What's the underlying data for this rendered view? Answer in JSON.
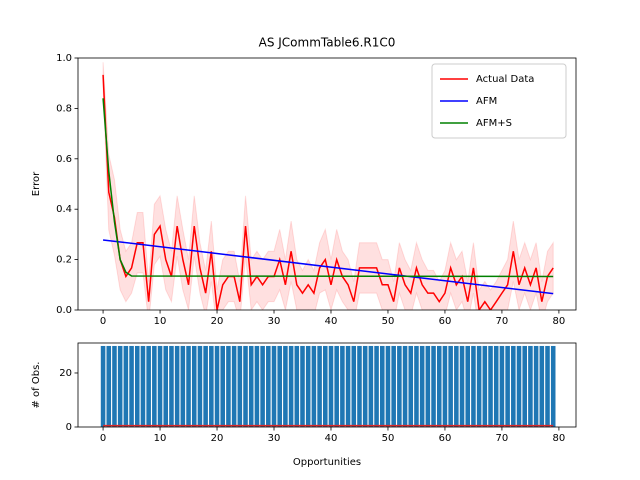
{
  "chart_data": [
    {
      "type": "line",
      "title": "AS JCommTable6.R1C0",
      "y_label": "Error",
      "xlim": [
        -4.4,
        83
      ],
      "ylim": [
        0,
        1
      ],
      "xticks": [
        0,
        10,
        20,
        30,
        40,
        50,
        60,
        70,
        80
      ],
      "yticks": [
        {
          "value": 0,
          "label": "0.0"
        },
        {
          "value": 0.2,
          "label": "0.2"
        },
        {
          "value": 0.4,
          "label": "0.4"
        },
        {
          "value": 0.6,
          "label": "0.6"
        },
        {
          "value": 0.8,
          "label": "0.8"
        },
        {
          "value": 1,
          "label": "1.0"
        }
      ],
      "legend": "upper right",
      "series": [
        {
          "name": "Actual Data",
          "color": "#ff0000",
          "band_color": "#ff0000",
          "x": [
            0,
            1,
            2,
            3,
            4,
            5,
            6,
            7,
            8,
            9,
            10,
            11,
            12,
            13,
            14,
            15,
            16,
            17,
            18,
            19,
            20,
            21,
            22,
            23,
            24,
            25,
            26,
            27,
            28,
            29,
            30,
            31,
            32,
            33,
            34,
            35,
            36,
            37,
            38,
            39,
            40,
            41,
            42,
            43,
            44,
            45,
            46,
            47,
            48,
            49,
            50,
            51,
            52,
            53,
            54,
            55,
            56,
            57,
            58,
            59,
            60,
            61,
            62,
            63,
            64,
            65,
            66,
            67,
            68,
            69,
            70,
            71,
            72,
            73,
            74,
            75,
            76,
            77,
            78,
            79
          ],
          "values": [
            0.933,
            0.467,
            0.367,
            0.2,
            0.133,
            0.167,
            0.267,
            0.267,
            0.033,
            0.3,
            0.333,
            0.2,
            0.133,
            0.333,
            0.2,
            0.1,
            0.333,
            0.167,
            0.067,
            0.233,
            0.0,
            0.1,
            0.133,
            0.133,
            0.033,
            0.333,
            0.1,
            0.133,
            0.1,
            0.133,
            0.133,
            0.2,
            0.1,
            0.233,
            0.1,
            0.067,
            0.1,
            0.067,
            0.167,
            0.2,
            0.1,
            0.2,
            0.133,
            0.1,
            0.033,
            0.167,
            0.167,
            0.167,
            0.167,
            0.1,
            0.1,
            0.033,
            0.167,
            0.1,
            0.067,
            0.167,
            0.1,
            0.067,
            0.067,
            0.033,
            0.067,
            0.167,
            0.1,
            0.133,
            0.033,
            0.167,
            0.0,
            0.033,
            0.0,
            0.033,
            0.067,
            0.1,
            0.233,
            0.1,
            0.167,
            0.1,
            0.167,
            0.033,
            0.133,
            0.167
          ],
          "errors": [
            0.05,
            0.15,
            0.15,
            0.12,
            0.1,
            0.1,
            0.12,
            0.12,
            0.08,
            0.12,
            0.12,
            0.12,
            0.1,
            0.12,
            0.12,
            0.1,
            0.12,
            0.1,
            0.09,
            0.12,
            0.08,
            0.1,
            0.1,
            0.1,
            0.08,
            0.12,
            0.1,
            0.1,
            0.1,
            0.1,
            0.1,
            0.12,
            0.1,
            0.12,
            0.1,
            0.09,
            0.1,
            0.09,
            0.1,
            0.12,
            0.1,
            0.12,
            0.1,
            0.1,
            0.08,
            0.1,
            0.1,
            0.1,
            0.1,
            0.1,
            0.1,
            0.08,
            0.1,
            0.1,
            0.09,
            0.1,
            0.1,
            0.09,
            0.09,
            0.08,
            0.09,
            0.1,
            0.1,
            0.1,
            0.08,
            0.1,
            0.08,
            0.08,
            0.08,
            0.08,
            0.09,
            0.1,
            0.12,
            0.1,
            0.1,
            0.1,
            0.1,
            0.08,
            0.1,
            0.1
          ]
        },
        {
          "name": "AFM",
          "color": "#0000ff",
          "x": [
            0,
            79
          ],
          "values": [
            0.278,
            0.065
          ]
        },
        {
          "name": "AFM+S",
          "color": "#008000",
          "x": [
            0,
            1,
            2,
            3,
            4,
            5,
            79
          ],
          "values": [
            0.84,
            0.55,
            0.35,
            0.2,
            0.15,
            0.135,
            0.133
          ]
        }
      ]
    },
    {
      "type": "bar",
      "x_label": "Opportunities",
      "y_label": "# of Obs.",
      "xlim": [
        -4.4,
        83
      ],
      "ylim": [
        0,
        31.1
      ],
      "xticks": [
        0,
        10,
        20,
        30,
        40,
        50,
        60,
        70,
        80
      ],
      "yticks": [
        0,
        20
      ],
      "bar_width": 0.8,
      "series": [
        {
          "name": "# of Obs.",
          "color": "#1f77b4",
          "x": [
            0,
            1,
            2,
            3,
            4,
            5,
            6,
            7,
            8,
            9,
            10,
            11,
            12,
            13,
            14,
            15,
            16,
            17,
            18,
            19,
            20,
            21,
            22,
            23,
            24,
            25,
            26,
            27,
            28,
            29,
            30,
            31,
            32,
            33,
            34,
            35,
            36,
            37,
            38,
            39,
            40,
            41,
            42,
            43,
            44,
            45,
            46,
            47,
            48,
            49,
            50,
            51,
            52,
            53,
            54,
            55,
            56,
            57,
            58,
            59,
            60,
            61,
            62,
            63,
            64,
            65,
            66,
            67,
            68,
            69,
            70,
            71,
            72,
            73,
            74,
            75,
            76,
            77,
            78,
            79
          ],
          "values": [
            30,
            30,
            30,
            30,
            30,
            30,
            30,
            30,
            30,
            30,
            30,
            30,
            30,
            30,
            30,
            30,
            30,
            30,
            30,
            30,
            30,
            30,
            30,
            30,
            30,
            30,
            30,
            30,
            30,
            30,
            30,
            30,
            30,
            30,
            30,
            30,
            30,
            30,
            30,
            30,
            30,
            30,
            30,
            30,
            30,
            30,
            30,
            30,
            30,
            30,
            30,
            30,
            30,
            30,
            30,
            30,
            30,
            30,
            30,
            30,
            30,
            30,
            30,
            30,
            30,
            30,
            30,
            30,
            30,
            30,
            30,
            30,
            30,
            30,
            30,
            30,
            30,
            30,
            30,
            30
          ]
        },
        {
          "type": "line",
          "color": "#d62728",
          "x": [
            0,
            79
          ],
          "values": [
            0.5,
            0.5
          ]
        }
      ]
    }
  ]
}
